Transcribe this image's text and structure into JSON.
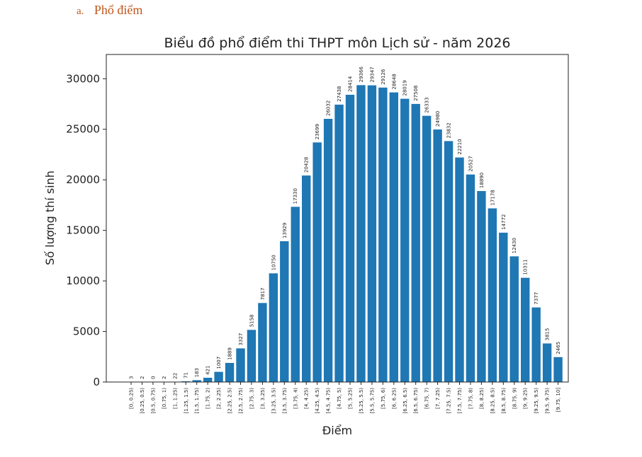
{
  "heading": {
    "marker": "a.",
    "text": "Phổ điểm"
  },
  "chart_data": {
    "type": "bar",
    "title": "Biểu đồ phổ điểm thi THPT môn Lịch sử - năm 2026",
    "xlabel": "Điểm",
    "ylabel": "Số lượng thí sinh",
    "ylim": [
      0,
      32400
    ],
    "yticks": [
      0,
      5000,
      10000,
      15000,
      20000,
      25000,
      30000
    ],
    "bar_color": "#1f77b4",
    "grid": false,
    "categories": [
      "[0, 0.25)",
      "[0.25, 0.5)",
      "[0.5, 0.75)",
      "[0.75, 1)",
      "[1, 1.25)",
      "[1.25, 1.5)",
      "[1.5, 1.75)",
      "[1.75, 2)",
      "[2, 2.25)",
      "[2.25, 2.5)",
      "[2.5, 2.75)",
      "[2.75, 3)",
      "[3, 3.25)",
      "[3.25, 3.5)",
      "[3.5, 3.75)",
      "[3.75, 4)",
      "[4, 4.25)",
      "[4.25, 4.5)",
      "[4.5, 4.75)",
      "[4.75, 5)",
      "[5, 5.25)",
      "[5.25, 5.5)",
      "[5.5, 5.75)",
      "[5.75, 6)",
      "[6, 6.25)",
      "[6.25, 6.5)",
      "[6.5, 6.75)",
      "[6.75, 7)",
      "[7, 7.25)",
      "[7.25, 7.5)",
      "[7.5, 7.75)",
      "[7.75, 8)",
      "[8, 8.25)",
      "[8.25, 8.5)",
      "[8.5, 8.75)",
      "[8.75, 9)",
      "[9, 9.25)",
      "[9.25, 9.5)",
      "[9.5, 9.75)",
      "[9.75, 10]"
    ],
    "values": [
      3,
      2,
      0,
      2,
      22,
      71,
      183,
      421,
      1007,
      1889,
      3327,
      5158,
      7817,
      10750,
      13929,
      17330,
      20428,
      23699,
      26032,
      27438,
      28414,
      29366,
      29347,
      29126,
      28648,
      28019,
      27508,
      26333,
      24980,
      23832,
      22210,
      20527,
      18890,
      17178,
      14772,
      12430,
      10311,
      7377,
      3815,
      2465
    ]
  }
}
